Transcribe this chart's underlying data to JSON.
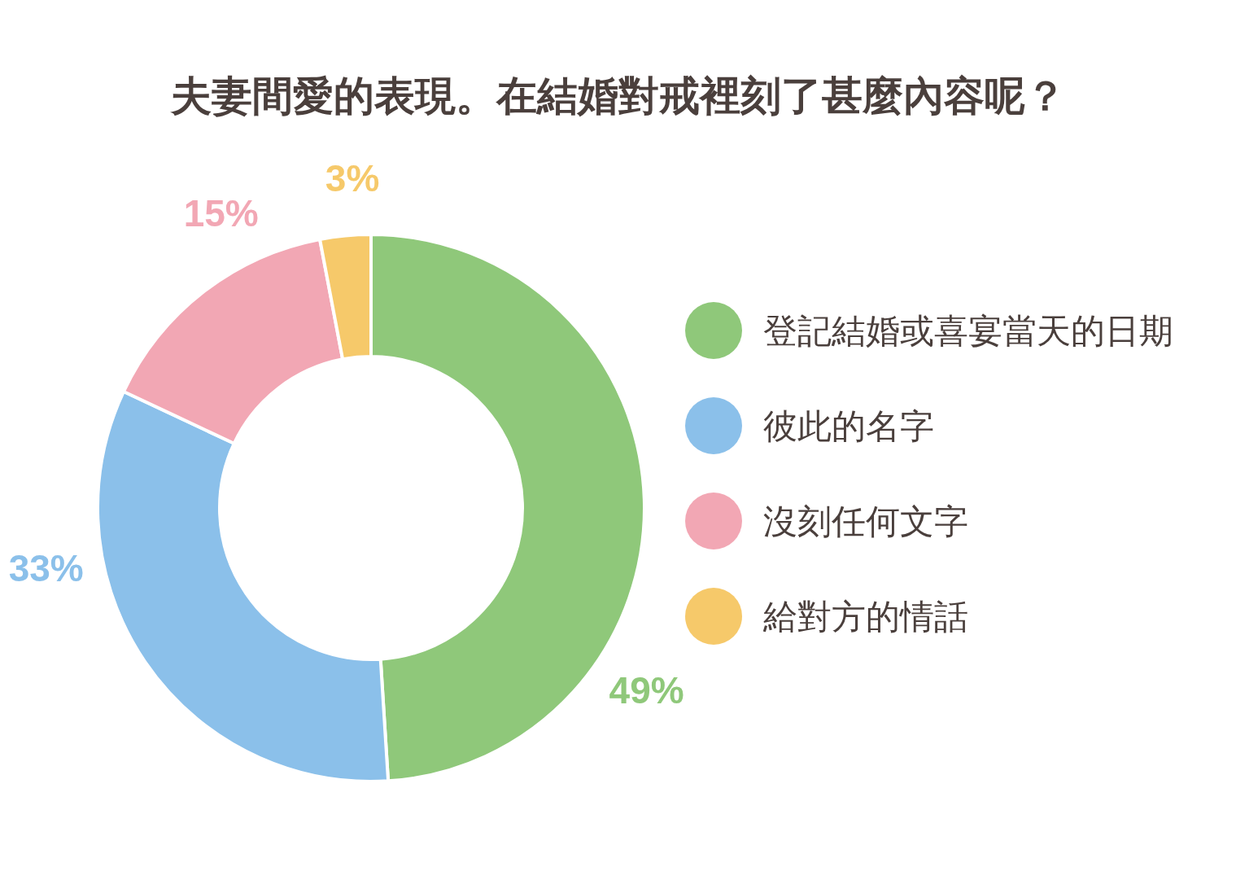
{
  "chart_data": {
    "type": "donut",
    "title": "夫妻間愛的表現。在結婚對戒裡刻了甚麼內容呢？",
    "categories": [
      "登記結婚或喜宴當天的日期",
      "彼此的名字",
      "沒刻任何文字",
      "給對方的情話"
    ],
    "values": [
      49,
      33,
      15,
      3
    ],
    "colors": [
      "#8fc87a",
      "#8bc0ea",
      "#f2a7b4",
      "#f6c96a"
    ],
    "value_labels": [
      "49%",
      "33%",
      "15%",
      "3%"
    ],
    "legend": "right"
  }
}
